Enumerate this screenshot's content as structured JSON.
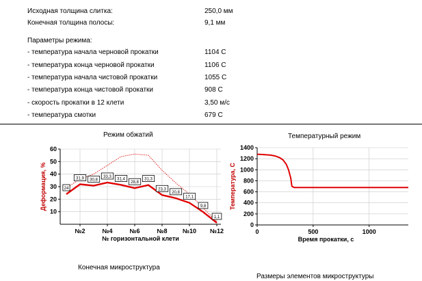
{
  "header": {
    "initial_thickness": {
      "label": "Исходная толщина  слитка:",
      "value": "250,0 мм"
    },
    "final_thickness": {
      "label": "Конечная толщина полосы:",
      "value": "9,1 мм"
    },
    "params_title": "Параметры режима:",
    "params": [
      {
        "label": " - температура начала черновой прокатки",
        "value": "1104 С"
      },
      {
        "label": " - температура конца черновой прокатки",
        "value": "1106 С"
      },
      {
        "label": " - температура начала чистовой прокатки",
        "value": "1055 С"
      },
      {
        "label": " - температура конца чистовой прокатки",
        "value": "908 С"
      },
      {
        "label": " - скорость прокатки в 12 клети",
        "value": "3,50 м/с"
      },
      {
        "label": " - температура смотки",
        "value": "679 С"
      }
    ]
  },
  "sections": {
    "microstructure": "Конечная микроструктура",
    "sizes": "Размеры элементов микроструктуры"
  },
  "chart_data": [
    {
      "type": "line",
      "title": "Режим обжатий",
      "xlabel": "№ горизонтальной клети",
      "ylabel": "Деформация, %",
      "x": [
        1,
        2,
        3,
        4,
        5,
        6,
        7,
        8,
        9,
        10,
        11,
        12
      ],
      "x_tick_labels": [
        "№2",
        "№4",
        "№6",
        "№8",
        "№10",
        "№12"
      ],
      "x_tick_positions": [
        2,
        4,
        6,
        8,
        10,
        12
      ],
      "ylim": [
        0,
        60
      ],
      "yticks": [
        10,
        20,
        30,
        40,
        50,
        60
      ],
      "grid": true,
      "colors": {
        "main": "#e00000",
        "dotted": "#e00000"
      },
      "series": [
        {
          "values": [
            24,
            31.9,
            30.8,
            33.3,
            31.4,
            28.8,
            31.3,
            23.3,
            20.8,
            17.1,
            9.8,
            1.1
          ],
          "labels": [
            "24",
            "31,9",
            "30,8",
            "33,3",
            "31,4",
            "28,8",
            "31,3",
            "23,3",
            "20,8",
            "17,1",
            "9,8",
            "1,1"
          ]
        },
        {
          "style": "dotted",
          "values": [
            29,
            36,
            40,
            47,
            54,
            56,
            55,
            43,
            33,
            24,
            13,
            2
          ]
        }
      ]
    },
    {
      "type": "line",
      "title": "Температурный режим",
      "xlabel": "Время прокатки, с",
      "ylabel": "Температура, С",
      "xlim": [
        0,
        1350
      ],
      "xticks": [
        0,
        500,
        1000
      ],
      "ylim": [
        0,
        1400
      ],
      "yticks": [
        0,
        200,
        400,
        600,
        800,
        1000,
        1200,
        1400
      ],
      "grid": true,
      "colors": {
        "main": "#e00000"
      },
      "series": [
        {
          "x": [
            0,
            60,
            120,
            160,
            200,
            230,
            260,
            280,
            300,
            310,
            330,
            1350
          ],
          "values": [
            1280,
            1275,
            1265,
            1250,
            1220,
            1180,
            1100,
            1000,
            850,
            700,
            679,
            679
          ]
        }
      ]
    }
  ]
}
